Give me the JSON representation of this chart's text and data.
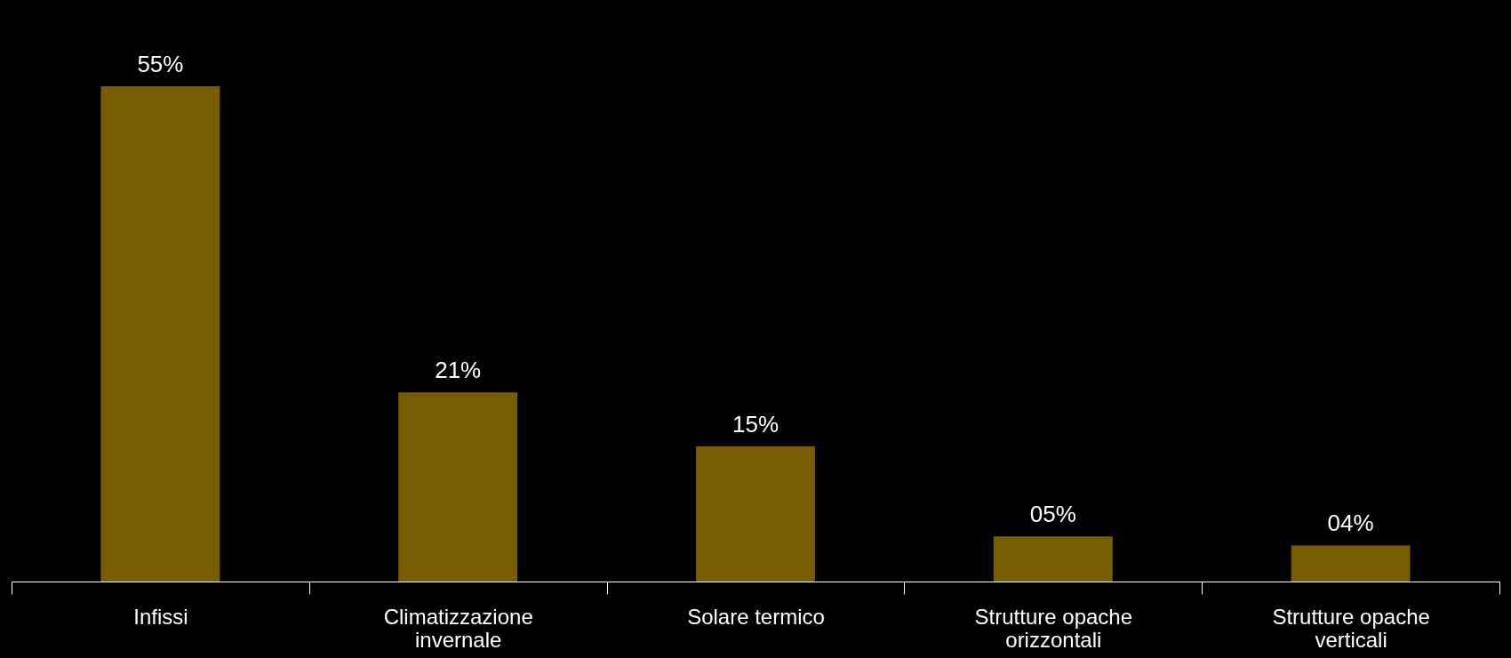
{
  "chart_data": {
    "type": "bar",
    "categories": [
      "Infissi",
      "Climatizzazione\ninvernale",
      "Solare termico",
      "Strutture opache\norizzontali",
      "Strutture opache\nverticali"
    ],
    "values": [
      55,
      21,
      15,
      5,
      4
    ],
    "value_labels": [
      "55%",
      "21%",
      "15%",
      "05%",
      "04%"
    ],
    "color": "#7a5c00",
    "grid": false
  }
}
